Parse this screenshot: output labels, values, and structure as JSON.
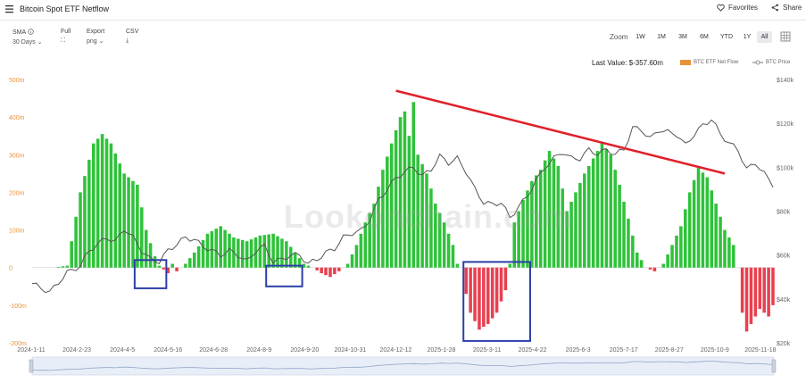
{
  "app": {
    "title": "Bitcoin Spot ETF Netflow"
  },
  "topbar": {
    "favorites_label": "Favorites",
    "share_label": "Share"
  },
  "controls": {
    "sma_label": "SMA",
    "sma_value": "30 Days",
    "full_label": "Full",
    "export_label": "Export",
    "export_value": "png",
    "csv_label": "CSV"
  },
  "zoom": {
    "label": "Zoom",
    "options": [
      "1W",
      "1M",
      "3M",
      "6M",
      "YTD",
      "1Y",
      "All"
    ],
    "active": "All"
  },
  "header": {
    "last_value": "Last Value: $-357.60m"
  },
  "legend": {
    "flow_label": "BTC ETF Net Flow",
    "price_label": "BTC Price"
  },
  "watermark": "Lookonchain.com",
  "colors": {
    "positive": "#2fc23a",
    "negative": "#e8404f",
    "price_line": "#555555",
    "trend_line": "#e0202a",
    "highlight_box": "#2b3ea8",
    "legend_flow": "#e8923a"
  },
  "chart_data": {
    "type": "bar+line",
    "x_ticks": [
      "2024-1-11",
      "2024-2-23",
      "2024-4-5",
      "2024-5-16",
      "2024-6-28",
      "2024-8-9",
      "2024-9-20",
      "2024-10-31",
      "2024-12-12",
      "2025-1-28",
      "2025-3-11",
      "2025-4-22",
      "2025-6-3",
      "2025-7-17",
      "2025-8-27",
      "2025-10-9",
      "2025-11-18"
    ],
    "y_left_ticks": [
      "500m",
      "400m",
      "300m",
      "200m",
      "100m",
      "0",
      "-100m",
      "-200m"
    ],
    "y_left_range": [
      -200,
      500
    ],
    "y_right_ticks": [
      "$140k",
      "$120k",
      "$100k",
      "$80k",
      "$60k",
      "$40k",
      "$20k"
    ],
    "y_right_range": [
      20,
      140
    ],
    "series": [
      {
        "name": "BTC ETF Net Flow",
        "anchors": [
          [
            0,
            0
          ],
          [
            5,
            0
          ],
          [
            8,
            5
          ],
          [
            11,
            200
          ],
          [
            14,
            330
          ],
          [
            16,
            355
          ],
          [
            18,
            330
          ],
          [
            21,
            250
          ],
          [
            24,
            220
          ],
          [
            26,
            100
          ],
          [
            28,
            30
          ],
          [
            29,
            5
          ],
          [
            30,
            -5
          ],
          [
            31,
            -15
          ],
          [
            32,
            10
          ],
          [
            33,
            -10
          ],
          [
            35,
            10
          ],
          [
            37,
            40
          ],
          [
            40,
            90
          ],
          [
            43,
            110
          ],
          [
            46,
            80
          ],
          [
            49,
            70
          ],
          [
            52,
            85
          ],
          [
            55,
            90
          ],
          [
            58,
            70
          ],
          [
            60,
            40
          ],
          [
            62,
            10
          ],
          [
            64,
            0
          ],
          [
            66,
            -15
          ],
          [
            68,
            -25
          ],
          [
            70,
            -10
          ],
          [
            72,
            10
          ],
          [
            74,
            60
          ],
          [
            76,
            120
          ],
          [
            78,
            170
          ],
          [
            80,
            260
          ],
          [
            82,
            330
          ],
          [
            84,
            400
          ],
          [
            85,
            415
          ],
          [
            86,
            350
          ],
          [
            87,
            440
          ],
          [
            88,
            300
          ],
          [
            90,
            250
          ],
          [
            92,
            170
          ],
          [
            94,
            120
          ],
          [
            96,
            60
          ],
          [
            97,
            10
          ],
          [
            98,
            0
          ],
          [
            99,
            -70
          ],
          [
            100,
            -120
          ],
          [
            102,
            -165
          ],
          [
            104,
            -150
          ],
          [
            106,
            -120
          ],
          [
            108,
            -60
          ],
          [
            109,
            10
          ],
          [
            110,
            120
          ],
          [
            112,
            180
          ],
          [
            114,
            230
          ],
          [
            116,
            260
          ],
          [
            118,
            310
          ],
          [
            120,
            270
          ],
          [
            122,
            150
          ],
          [
            124,
            200
          ],
          [
            126,
            250
          ],
          [
            128,
            290
          ],
          [
            130,
            330
          ],
          [
            132,
            300
          ],
          [
            134,
            220
          ],
          [
            136,
            130
          ],
          [
            138,
            40
          ],
          [
            140,
            0
          ],
          [
            142,
            -10
          ],
          [
            144,
            10
          ],
          [
            146,
            60
          ],
          [
            148,
            110
          ],
          [
            150,
            200
          ],
          [
            152,
            265
          ],
          [
            154,
            240
          ],
          [
            156,
            170
          ],
          [
            158,
            100
          ],
          [
            160,
            60
          ],
          [
            161,
            0
          ],
          [
            162,
            -120
          ],
          [
            163,
            -170
          ],
          [
            164,
            -150
          ],
          [
            166,
            -110
          ],
          [
            168,
            -130
          ],
          [
            169,
            -100
          ]
        ]
      },
      {
        "name": "BTC Price",
        "anchors": [
          [
            0,
            47
          ],
          [
            4,
            43
          ],
          [
            8,
            52
          ],
          [
            11,
            55
          ],
          [
            13,
            62
          ],
          [
            15,
            65
          ],
          [
            17,
            68
          ],
          [
            19,
            66
          ],
          [
            21,
            72
          ],
          [
            23,
            68
          ],
          [
            25,
            62
          ],
          [
            27,
            58
          ],
          [
            29,
            57
          ],
          [
            31,
            62
          ],
          [
            33,
            65
          ],
          [
            35,
            68
          ],
          [
            37,
            67
          ],
          [
            39,
            64
          ],
          [
            41,
            62
          ],
          [
            43,
            60
          ],
          [
            45,
            62
          ],
          [
            47,
            60
          ],
          [
            49,
            57
          ],
          [
            51,
            62
          ],
          [
            53,
            64
          ],
          [
            55,
            57
          ],
          [
            57,
            58
          ],
          [
            59,
            60
          ],
          [
            61,
            60
          ],
          [
            63,
            56
          ],
          [
            65,
            58
          ],
          [
            67,
            61
          ],
          [
            69,
            63
          ],
          [
            71,
            68
          ],
          [
            73,
            70
          ],
          [
            75,
            71
          ],
          [
            77,
            76
          ],
          [
            79,
            85
          ],
          [
            81,
            90
          ],
          [
            83,
            95
          ],
          [
            85,
            98
          ],
          [
            87,
            100
          ],
          [
            89,
            96
          ],
          [
            91,
            99
          ],
          [
            93,
            105
          ],
          [
            95,
            102
          ],
          [
            97,
            104
          ],
          [
            99,
            98
          ],
          [
            101,
            90
          ],
          [
            103,
            84
          ],
          [
            105,
            83
          ],
          [
            107,
            84
          ],
          [
            109,
            77
          ],
          [
            111,
            82
          ],
          [
            113,
            87
          ],
          [
            115,
            94
          ],
          [
            117,
            100
          ],
          [
            119,
            104
          ],
          [
            121,
            107
          ],
          [
            123,
            104
          ],
          [
            125,
            104
          ],
          [
            127,
            108
          ],
          [
            129,
            106
          ],
          [
            131,
            108
          ],
          [
            133,
            106
          ],
          [
            135,
            108
          ],
          [
            137,
            118
          ],
          [
            139,
            117
          ],
          [
            141,
            113
          ],
          [
            143,
            117
          ],
          [
            145,
            116
          ],
          [
            147,
            115
          ],
          [
            149,
            110
          ],
          [
            151,
            115
          ],
          [
            153,
            119
          ],
          [
            155,
            122
          ],
          [
            157,
            115
          ],
          [
            159,
            111
          ],
          [
            161,
            108
          ],
          [
            163,
            99
          ],
          [
            165,
            102
          ],
          [
            167,
            97
          ],
          [
            169,
            92
          ]
        ]
      }
    ]
  }
}
